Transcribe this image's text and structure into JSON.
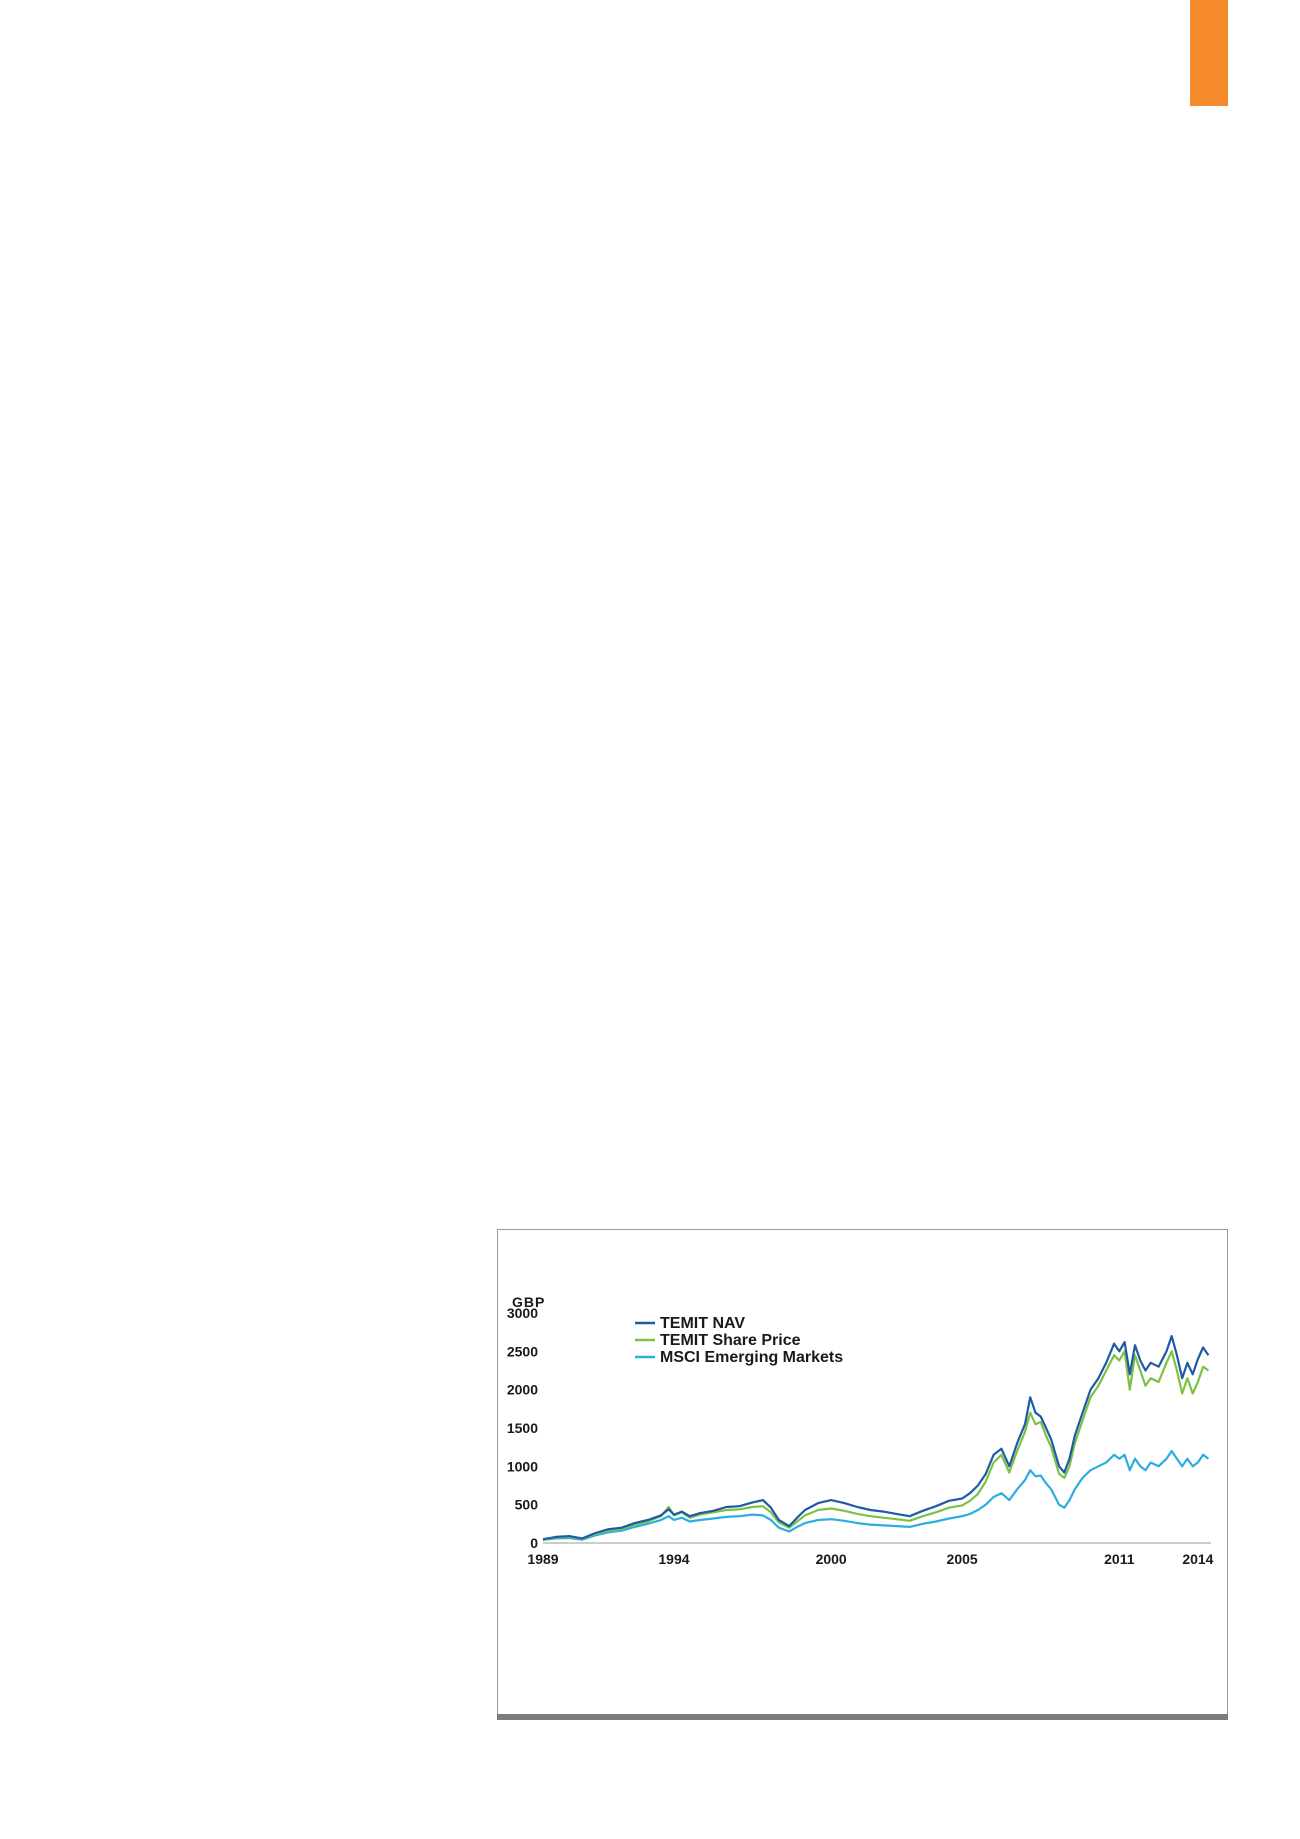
{
  "page": {
    "accent_color": "#f58a2a"
  },
  "chart_data": {
    "type": "line",
    "title": "",
    "xlabel": "",
    "ylabel": "GBP",
    "ylim": [
      0,
      3000
    ],
    "xlim": [
      1989,
      2014.5
    ],
    "y_ticks": [
      0,
      500,
      1000,
      1500,
      2000,
      2500,
      3000
    ],
    "x_ticks": [
      1989,
      1994,
      2000,
      2005,
      2011,
      2014
    ],
    "grid": false,
    "legend_position": "top-left",
    "series": [
      {
        "name": "TEMIT NAV",
        "color": "#1f5aa6",
        "x": [
          1989.0,
          1989.5,
          1990.0,
          1990.5,
          1991.0,
          1991.5,
          1992.0,
          1992.5,
          1993.0,
          1993.5,
          1993.8,
          1994.0,
          1994.3,
          1994.6,
          1995.0,
          1995.5,
          1996.0,
          1996.5,
          1997.0,
          1997.4,
          1997.7,
          1998.0,
          1998.4,
          1998.7,
          1999.0,
          1999.5,
          2000.0,
          2000.5,
          2001.0,
          2001.5,
          2002.0,
          2002.5,
          2003.0,
          2003.5,
          2004.0,
          2004.5,
          2005.0,
          2005.3,
          2005.6,
          2005.9,
          2006.2,
          2006.5,
          2006.8,
          2007.1,
          2007.4,
          2007.6,
          2007.8,
          2008.0,
          2008.2,
          2008.4,
          2008.7,
          2008.9,
          2009.1,
          2009.3,
          2009.6,
          2009.9,
          2010.2,
          2010.5,
          2010.8,
          2011.0,
          2011.2,
          2011.4,
          2011.6,
          2011.8,
          2012.0,
          2012.2,
          2012.5,
          2012.8,
          2013.0,
          2013.2,
          2013.4,
          2013.6,
          2013.8,
          2014.0,
          2014.2,
          2014.4
        ],
        "values": [
          50,
          80,
          90,
          60,
          130,
          180,
          200,
          260,
          300,
          360,
          440,
          370,
          410,
          350,
          390,
          420,
          470,
          480,
          530,
          560,
          460,
          300,
          220,
          330,
          430,
          520,
          560,
          520,
          470,
          430,
          410,
          380,
          350,
          420,
          480,
          550,
          580,
          650,
          750,
          900,
          1150,
          1230,
          1000,
          1300,
          1550,
          1900,
          1700,
          1650,
          1500,
          1350,
          1000,
          920,
          1100,
          1400,
          1700,
          2000,
          2150,
          2350,
          2600,
          2500,
          2620,
          2200,
          2580,
          2380,
          2250,
          2350,
          2300,
          2500,
          2700,
          2450,
          2150,
          2350,
          2200,
          2400,
          2550,
          2450
        ]
      },
      {
        "name": "TEMIT Share Price",
        "color": "#7cc242",
        "x": [
          1989.0,
          1989.5,
          1990.0,
          1990.5,
          1991.0,
          1991.5,
          1992.0,
          1992.5,
          1993.0,
          1993.5,
          1993.8,
          1994.0,
          1994.3,
          1994.6,
          1995.0,
          1995.5,
          1996.0,
          1996.5,
          1997.0,
          1997.4,
          1997.7,
          1998.0,
          1998.4,
          1998.7,
          1999.0,
          1999.5,
          2000.0,
          2000.5,
          2001.0,
          2001.5,
          2002.0,
          2002.5,
          2003.0,
          2003.5,
          2004.0,
          2004.5,
          2005.0,
          2005.3,
          2005.6,
          2005.9,
          2006.2,
          2006.5,
          2006.8,
          2007.1,
          2007.4,
          2007.6,
          2007.8,
          2008.0,
          2008.2,
          2008.4,
          2008.7,
          2008.9,
          2009.1,
          2009.3,
          2009.6,
          2009.9,
          2010.2,
          2010.5,
          2010.8,
          2011.0,
          2011.2,
          2011.4,
          2011.6,
          2011.8,
          2012.0,
          2012.2,
          2012.5,
          2012.8,
          2013.0,
          2013.2,
          2013.4,
          2013.6,
          2013.8,
          2014.0,
          2014.2,
          2014.4
        ],
        "values": [
          45,
          70,
          80,
          55,
          120,
          160,
          180,
          240,
          280,
          350,
          470,
          360,
          400,
          330,
          370,
          400,
          430,
          440,
          470,
          480,
          400,
          270,
          200,
          280,
          360,
          430,
          450,
          420,
          380,
          350,
          330,
          310,
          290,
          350,
          400,
          460,
          490,
          550,
          640,
          800,
          1050,
          1150,
          920,
          1200,
          1450,
          1700,
          1550,
          1580,
          1400,
          1250,
          900,
          850,
          1000,
          1300,
          1600,
          1900,
          2050,
          2250,
          2450,
          2380,
          2500,
          2000,
          2450,
          2250,
          2050,
          2150,
          2100,
          2350,
          2500,
          2250,
          1950,
          2150,
          1950,
          2100,
          2300,
          2250
        ]
      },
      {
        "name": "MSCI Emerging Markets",
        "color": "#2aaee0",
        "x": [
          1989.0,
          1989.5,
          1990.0,
          1990.5,
          1991.0,
          1991.5,
          1992.0,
          1992.5,
          1993.0,
          1993.5,
          1993.8,
          1994.0,
          1994.3,
          1994.6,
          1995.0,
          1995.5,
          1996.0,
          1996.5,
          1997.0,
          1997.4,
          1997.7,
          1998.0,
          1998.4,
          1998.7,
          1999.0,
          1999.5,
          2000.0,
          2000.5,
          2001.0,
          2001.5,
          2002.0,
          2002.5,
          2003.0,
          2003.5,
          2004.0,
          2004.5,
          2005.0,
          2005.3,
          2005.6,
          2005.9,
          2006.2,
          2006.5,
          2006.8,
          2007.1,
          2007.4,
          2007.6,
          2007.8,
          2008.0,
          2008.2,
          2008.4,
          2008.7,
          2008.9,
          2009.1,
          2009.3,
          2009.6,
          2009.9,
          2010.2,
          2010.5,
          2010.8,
          2011.0,
          2011.2,
          2011.4,
          2011.6,
          2011.8,
          2012.0,
          2012.2,
          2012.5,
          2012.8,
          2013.0,
          2013.2,
          2013.4,
          2013.6,
          2013.8,
          2014.0,
          2014.2,
          2014.4
        ],
        "values": [
          40,
          60,
          65,
          45,
          100,
          140,
          160,
          210,
          250,
          300,
          350,
          300,
          330,
          280,
          300,
          320,
          340,
          350,
          370,
          360,
          300,
          200,
          150,
          210,
          260,
          300,
          310,
          290,
          260,
          240,
          230,
          220,
          210,
          250,
          280,
          320,
          350,
          380,
          430,
          500,
          600,
          650,
          560,
          700,
          820,
          950,
          870,
          880,
          780,
          700,
          500,
          460,
          560,
          700,
          850,
          950,
          1000,
          1050,
          1150,
          1100,
          1150,
          950,
          1100,
          1000,
          950,
          1050,
          1000,
          1100,
          1200,
          1100,
          1000,
          1100,
          1000,
          1050,
          1150,
          1100
        ]
      }
    ]
  }
}
